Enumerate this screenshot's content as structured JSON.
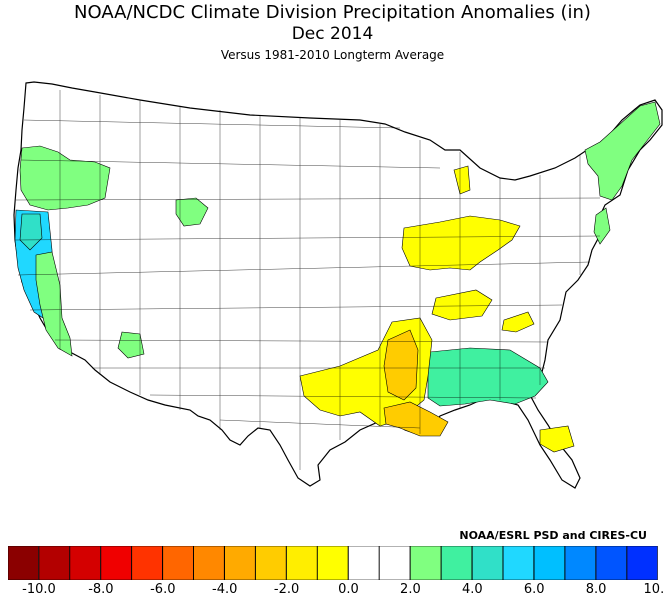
{
  "header": {
    "title": "NOAA/NCDC Climate Division Precipitation Anomalies (in)",
    "month": "Dec 2014",
    "baseline": "Versus 1981-2010 Longterm Average"
  },
  "credit": "NOAA/ESRL PSD and CIRES-CU",
  "legend": {
    "unit": "in",
    "colors": [
      "#8b0000",
      "#b30000",
      "#d40000",
      "#f00000",
      "#ff3300",
      "#ff6600",
      "#ff8800",
      "#ffaa00",
      "#ffcc00",
      "#ffee00",
      "#ffff00",
      "#ffffff",
      "#ffffff",
      "#80ff80",
      "#40f0a0",
      "#30e0c8",
      "#20d8ff",
      "#00bfff",
      "#0088ff",
      "#0055ff",
      "#0030ff"
    ],
    "tick_labels": [
      "-10.0",
      "-8.0",
      "-6.0",
      "-4.0",
      "-2.0",
      "0.0",
      "2.0",
      "4.0",
      "6.0",
      "8.0",
      "10.0"
    ]
  },
  "map": {
    "region": "Contiguous United States climate divisions",
    "anomaly_areas": [
      {
        "area": "Western Washington / Oregon coast",
        "category": "2.0 to 4.0"
      },
      {
        "area": "Northern California / Sierra Nevada",
        "category": "6.0 to 8.0"
      },
      {
        "area": "Central California valley and coast",
        "category": "2.0 to 4.0"
      },
      {
        "area": "Southern California / Southern Nevada",
        "category": "2.0 to 4.0"
      },
      {
        "area": "Southwest Wyoming / Northern Utah",
        "category": "0.0 to 2.0"
      },
      {
        "area": "Central Arizona",
        "category": "0.0 to 2.0"
      },
      {
        "area": "Georgia / South Carolina / Alabama",
        "category": "0.0 to 4.0"
      },
      {
        "area": "New England / Northeast coast",
        "category": "0.0 to 2.0"
      },
      {
        "area": "Illinois / Indiana / Ohio / Michigan",
        "category": "-2.0 to 0.0"
      },
      {
        "area": "Louisiana / Arkansas / Mississippi / Texas",
        "category": "-4.0 to -2.0"
      },
      {
        "area": "Central Florida",
        "category": "-2.0 to 0.0"
      }
    ]
  }
}
